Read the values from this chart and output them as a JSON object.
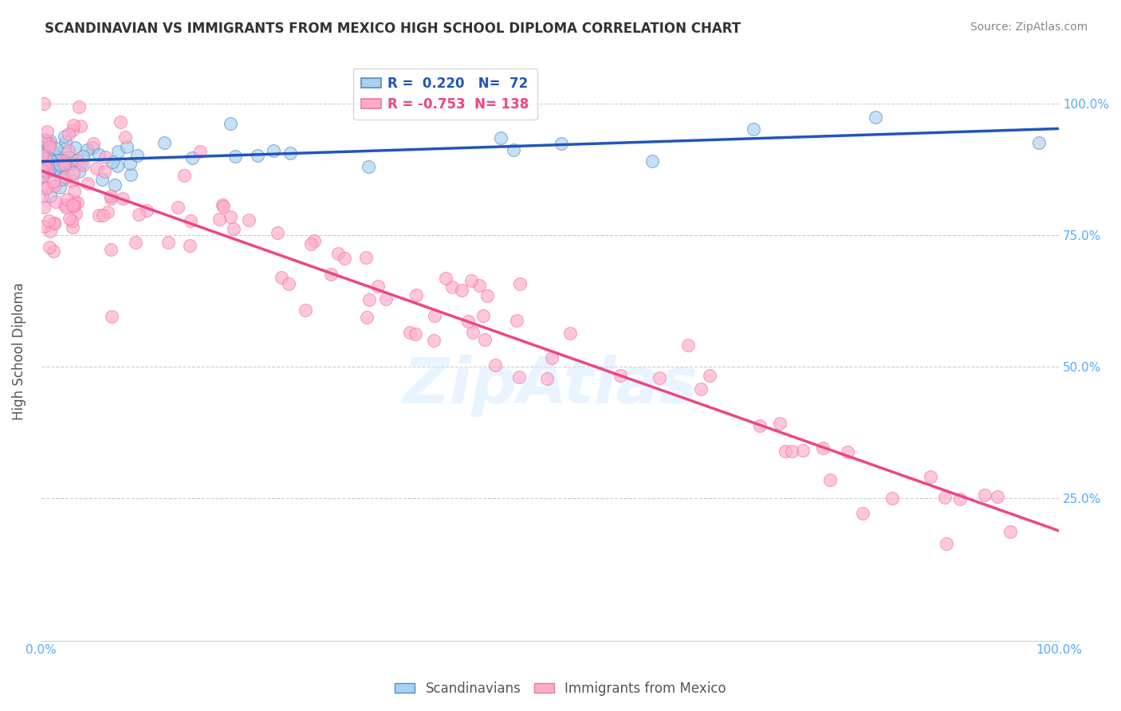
{
  "title": "SCANDINAVIAN VS IMMIGRANTS FROM MEXICO HIGH SCHOOL DIPLOMA CORRELATION CHART",
  "source": "Source: ZipAtlas.com",
  "ylabel": "High School Diploma",
  "blue_R": 0.22,
  "blue_N": 72,
  "pink_R": -0.753,
  "pink_N": 138,
  "blue_color": "#a8d0f0",
  "blue_edge_color": "#5588cc",
  "blue_line_color": "#2255bb",
  "pink_color": "#ffaacc",
  "pink_edge_color": "#ee7799",
  "pink_line_color": "#ee4488",
  "background_color": "#ffffff",
  "grid_color": "#cccccc",
  "legend_label_blue": "Scandinavians",
  "legend_label_pink": "Immigrants from Mexico",
  "watermark": "ZipAtlas",
  "tick_color": "#55aaff",
  "title_color": "#333333",
  "source_color": "#888888",
  "ylabel_color": "#555555"
}
